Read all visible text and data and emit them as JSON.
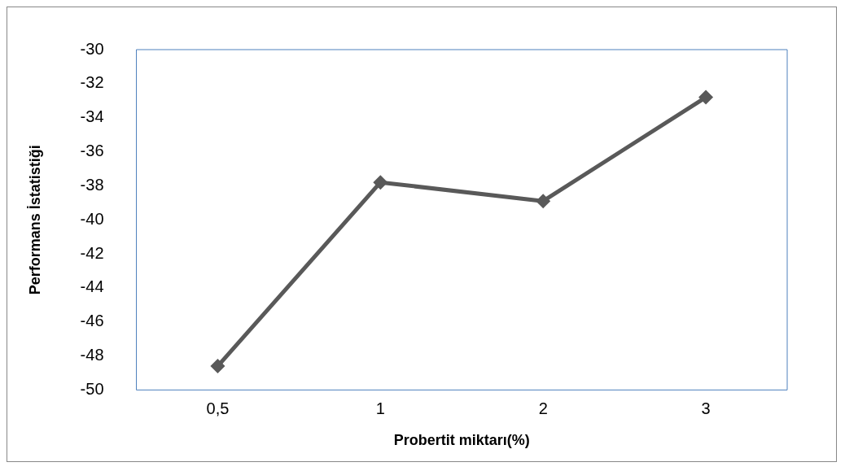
{
  "chart_data": {
    "type": "line",
    "xlabel": "Probertit miktarı(%)",
    "ylabel": "Performans İstatistiği",
    "categories": [
      "0,5",
      "1",
      "2",
      "3"
    ],
    "series": [
      {
        "color": "#595959",
        "values": [
          -48.6,
          -37.8,
          -38.9,
          -32.8
        ]
      }
    ],
    "ylim": [
      -50,
      -30
    ],
    "yticks": [
      -50,
      -48,
      -46,
      -44,
      -42,
      -40,
      -38,
      -36,
      -34,
      -32,
      -30
    ],
    "grid": false,
    "legend": false,
    "marker": "diamond",
    "line_style": "solid"
  }
}
